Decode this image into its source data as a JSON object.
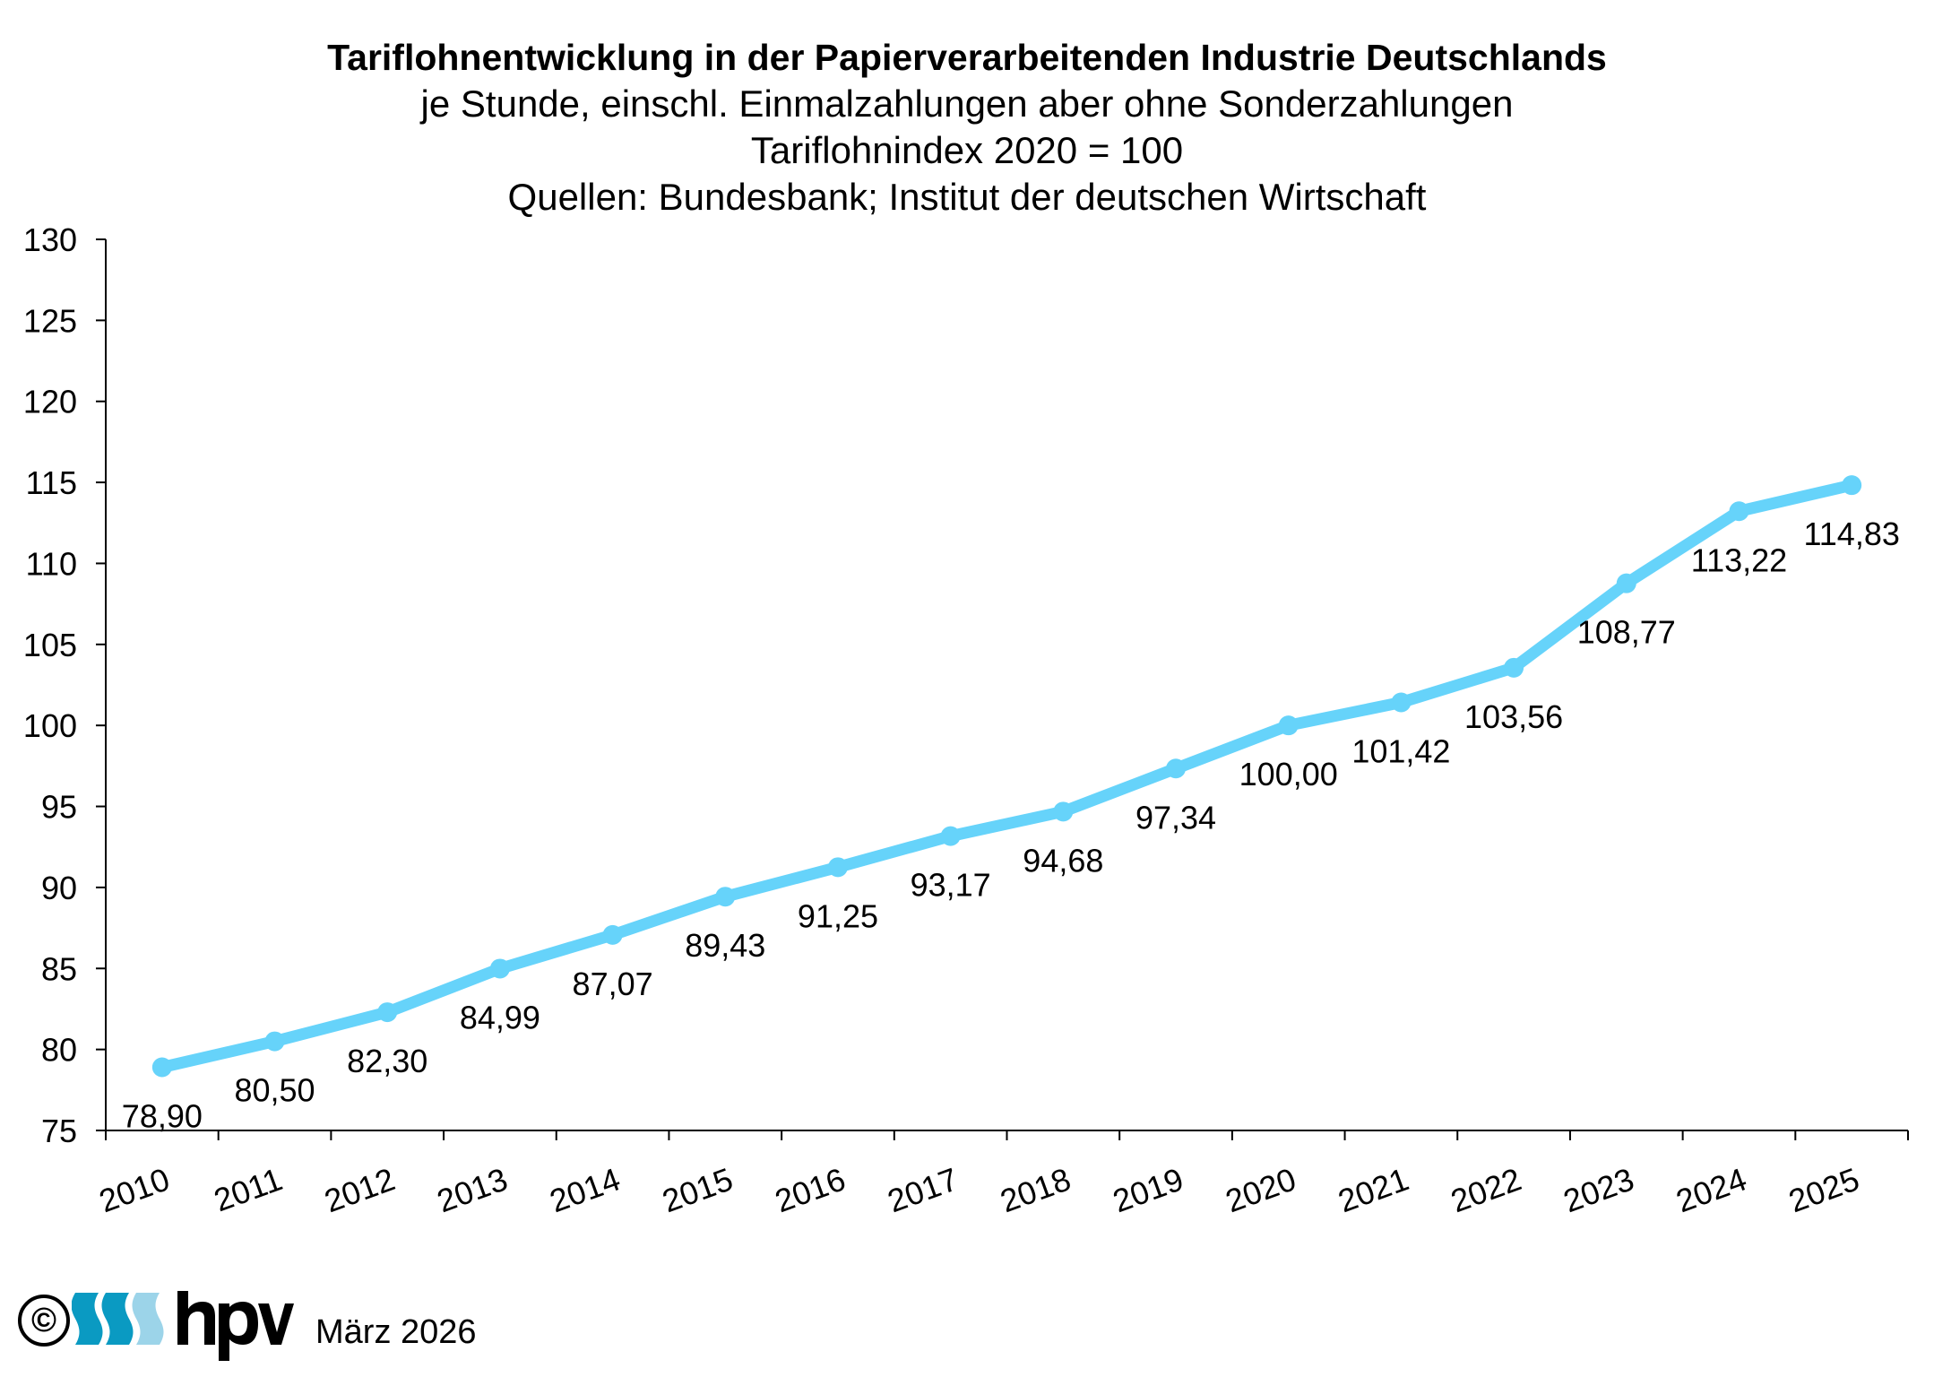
{
  "chart_data": {
    "type": "line",
    "title": "Tariflohnentwicklung in der Papierverarbeitenden Industrie Deutschlands",
    "subtitle_lines": [
      "je Stunde, einschl. Einmalzahlungen aber ohne Sonderzahlungen",
      "Tariflohnindex 2020 = 100",
      "Quellen: Bundesbank; Institut der deutschen Wirtschaft"
    ],
    "xlabel": "",
    "ylabel": "",
    "categories": [
      "2010",
      "2011",
      "2012",
      "2013",
      "2014",
      "2015",
      "2016",
      "2017",
      "2018",
      "2019",
      "2020",
      "2021",
      "2022",
      "2023",
      "2024",
      "2025"
    ],
    "series": [
      {
        "name": "Tariflohnindex",
        "color": "#66D3FA",
        "values": [
          78.9,
          80.5,
          82.3,
          84.99,
          87.07,
          89.43,
          91.25,
          93.17,
          94.68,
          97.34,
          100.0,
          101.42,
          103.56,
          108.77,
          113.22,
          114.83
        ],
        "labels": [
          "78,90",
          "80,50",
          "82,30",
          "84,99",
          "87,07",
          "89,43",
          "91,25",
          "93,17",
          "94,68",
          "97,34",
          "100,00",
          "101,42",
          "103,56",
          "108,77",
          "113,22",
          "114,83"
        ]
      }
    ],
    "ylim": [
      75,
      130
    ],
    "yticks": [
      75,
      80,
      85,
      90,
      95,
      100,
      105,
      110,
      115,
      120,
      125,
      130
    ],
    "grid": false,
    "legend": "none"
  },
  "footer": {
    "copyright_symbol": "©",
    "logo_text": "hpv",
    "logo_colors": [
      "#0A9AC2",
      "#0A9AC2",
      "#9CD4E9"
    ],
    "date": "März 2026"
  }
}
